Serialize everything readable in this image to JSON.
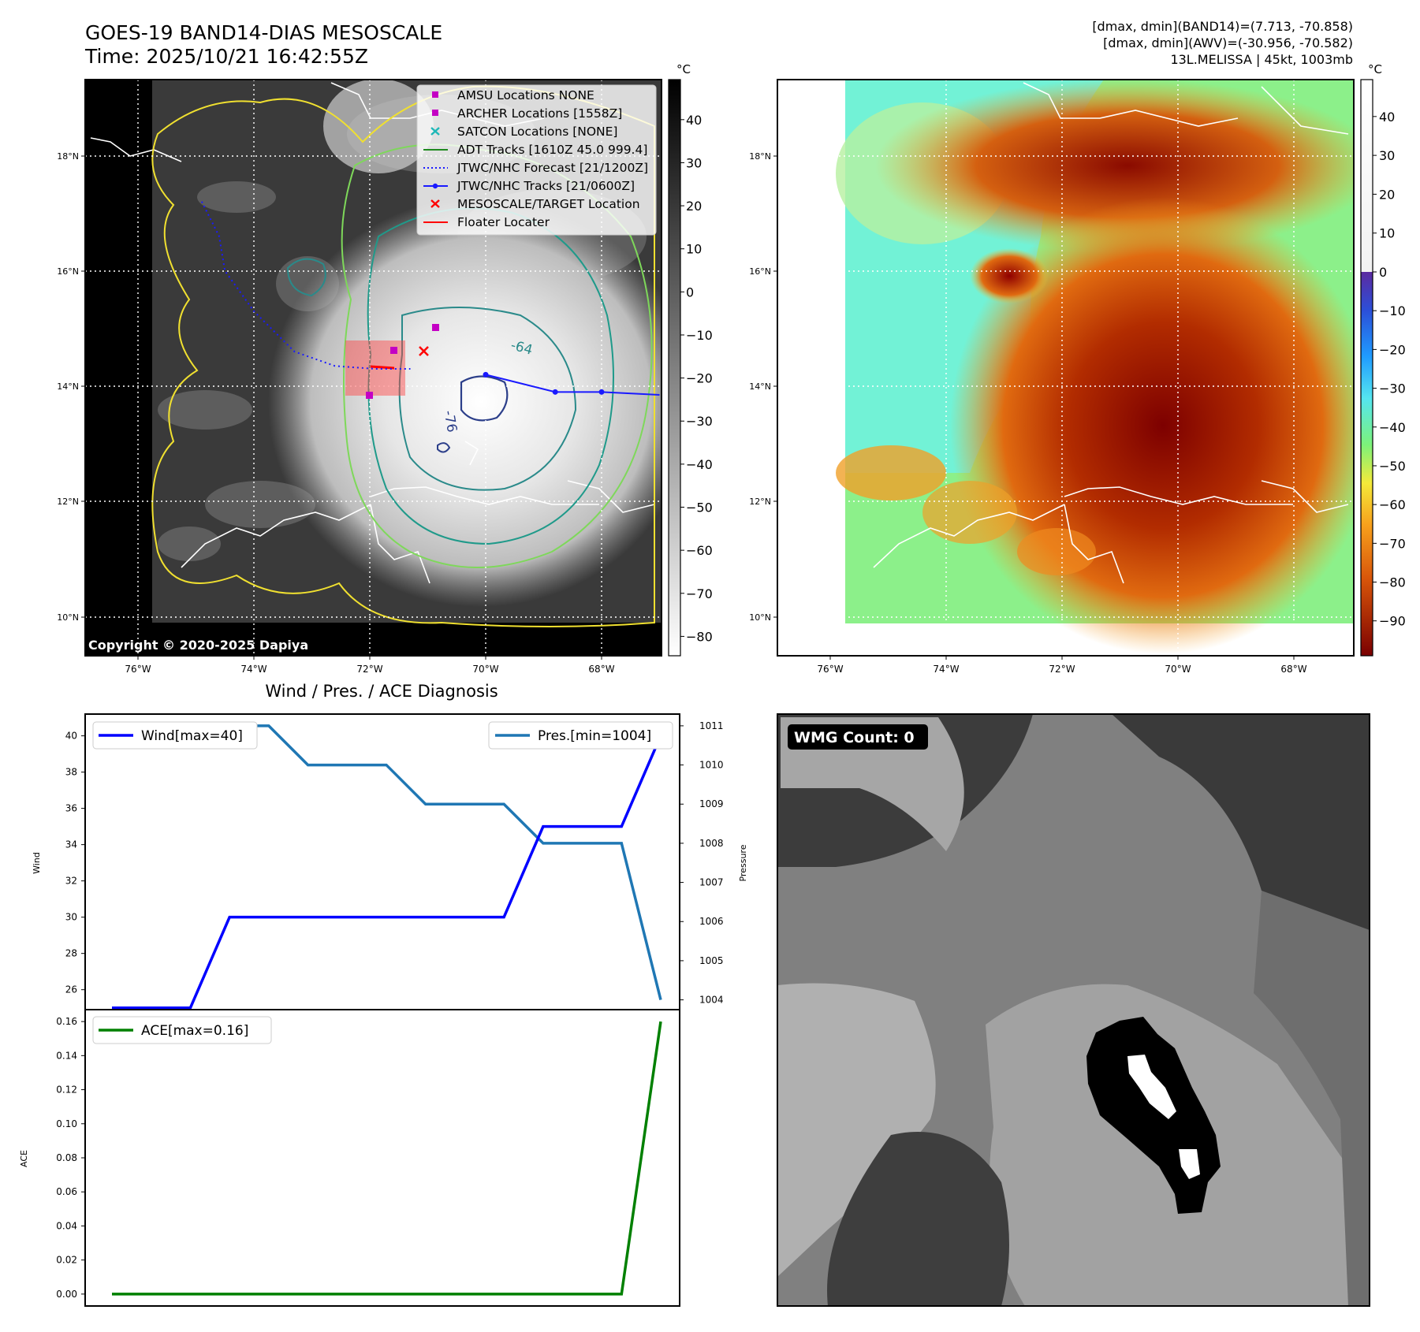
{
  "header": {
    "title_line1": "GOES-19 BAND14-DIAS MESOSCALE",
    "title_line2": "Time: 2025/10/21 16:42:55Z",
    "right_line1": "[dmax, dmin](BAND14)=(7.713, -70.858)",
    "right_line2": "[dmax, dmin](AWV)=(-30.956, -70.582)",
    "right_line3": "13L.MELISSA | 45kt, 1003mb"
  },
  "map_axes": {
    "lat_ticks": [
      "18°N",
      "16°N",
      "14°N",
      "12°N",
      "10°N"
    ],
    "lon_ticks": [
      "76°W",
      "74°W",
      "72°W",
      "70°W",
      "68°W"
    ]
  },
  "ir_panel": {
    "colorbar_unit": "°C",
    "colorbar_ticks": [
      "40",
      "30",
      "20",
      "10",
      "0",
      "−10",
      "−20",
      "−30",
      "−40",
      "−50",
      "−60",
      "−70",
      "−80"
    ],
    "contour_labels": [
      "-64",
      "-76"
    ],
    "copyright": "Copyright © 2020-2025 Dapiya",
    "legend": [
      {
        "label": "AMSU Locations NONE",
        "color": "#c400c4",
        "marker": "square"
      },
      {
        "label": "ARCHER Locations [1558Z]",
        "color": "#c400c4",
        "marker": "square"
      },
      {
        "label": "SATCON Locations [NONE]",
        "color": "#1fb8b8",
        "marker": "x"
      },
      {
        "label": "ADT Tracks [1610Z 45.0 999.4]",
        "color": "#1e8a1e",
        "marker": "line"
      },
      {
        "label": "JTWC/NHC Forecast [21/1200Z]",
        "color": "#1a1aff",
        "marker": "dotted"
      },
      {
        "label": "JTWC/NHC Tracks [21/0600Z]",
        "color": "#1a1aff",
        "marker": "line-dot"
      },
      {
        "label": "MESOSCALE/TARGET Location",
        "color": "#ff0000",
        "marker": "x"
      },
      {
        "label": "Floater Locater",
        "color": "#ff0000",
        "marker": "line"
      }
    ],
    "forecast_track": [
      [
        -74.9,
        17.2
      ],
      [
        -74.6,
        16.6
      ],
      [
        -74.5,
        16.0
      ],
      [
        -74.0,
        15.3
      ],
      [
        -73.3,
        14.6
      ],
      [
        -72.6,
        14.35
      ],
      [
        -71.9,
        14.3
      ],
      [
        -71.3,
        14.3
      ]
    ],
    "best_track": [
      [
        -70.0,
        14.2
      ],
      [
        -68.8,
        13.9
      ],
      [
        -68.0,
        13.9
      ],
      [
        -67.0,
        13.85
      ]
    ]
  },
  "awv_panel": {
    "colorbar_unit": "°C",
    "colorbar_ticks": [
      "40",
      "30",
      "20",
      "10",
      "0",
      "−10",
      "−20",
      "−30",
      "−40",
      "−50",
      "−60",
      "−70",
      "−80",
      "−90"
    ]
  },
  "wmg_panel": {
    "label": "WMG Count: 0"
  },
  "chart_data": [
    {
      "type": "line",
      "title": "Wind / Pres. / ACE Diagnosis",
      "ylabel": "Wind",
      "y2label": "Pressure",
      "ylim": [
        24.9,
        41.2
      ],
      "y2lim": [
        1003.75,
        1011.3
      ],
      "yticks": [
        26,
        28,
        30,
        32,
        34,
        36,
        38,
        40
      ],
      "y2ticks": [
        1004,
        1005,
        1006,
        1007,
        1008,
        1009,
        1010,
        1011
      ],
      "x": [
        0,
        1,
        2,
        3,
        4,
        5,
        6,
        7,
        8,
        9,
        10,
        11,
        12,
        13,
        14
      ],
      "series": [
        {
          "name": "Wind[max=40]",
          "axis": "left",
          "color": "#0000ff",
          "values": [
            25,
            25,
            25,
            30,
            30,
            30,
            30,
            30,
            30,
            30,
            30,
            35,
            35,
            35,
            40
          ]
        },
        {
          "name": "Pres.[min=1004]",
          "axis": "right",
          "color": "#1f77b4",
          "values": [
            1011,
            1011,
            1011,
            1011,
            1011,
            1010,
            1010,
            1010,
            1009,
            1009,
            1009,
            1008,
            1008,
            1008,
            1004
          ]
        }
      ]
    },
    {
      "type": "line",
      "ylabel": "ACE",
      "ylim": [
        -0.007,
        0.167
      ],
      "yticks": [
        "0.00",
        "0.02",
        "0.04",
        "0.06",
        "0.08",
        "0.10",
        "0.12",
        "0.14",
        "0.16"
      ],
      "x": [
        0,
        1,
        2,
        3,
        4,
        5,
        6,
        7,
        8,
        9,
        10,
        11,
        12,
        13,
        14
      ],
      "series": [
        {
          "name": "ACE[max=0.16]",
          "axis": "left",
          "color": "#008000",
          "values": [
            0,
            0,
            0,
            0,
            0,
            0,
            0,
            0,
            0,
            0,
            0,
            0,
            0,
            0,
            0.16
          ]
        }
      ]
    }
  ]
}
